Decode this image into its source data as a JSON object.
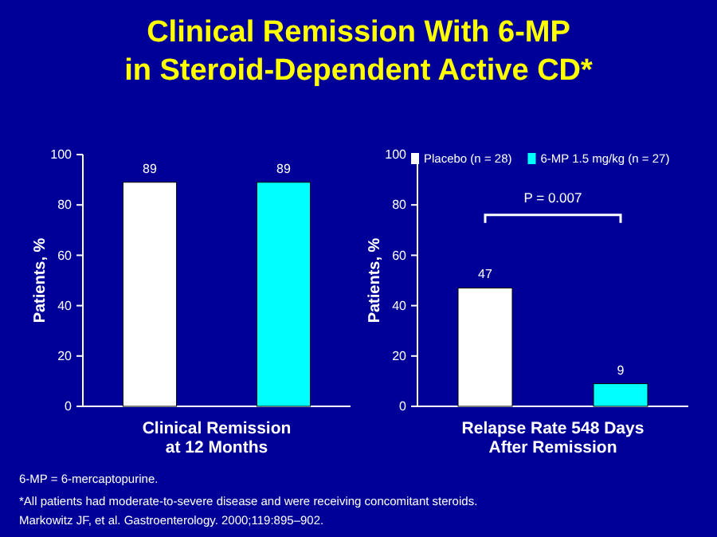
{
  "chart_data": [
    {
      "type": "bar",
      "title": "Clinical Remission With 6-MP\nin Steroid-Dependent Active CD*",
      "categories": [
        null
      ],
      "series": [
        {
          "name": "Placebo (n = 28)",
          "color": "#ffffff",
          "values": [
            89
          ]
        },
        {
          "name": "6-MP 1.5 mg/kg (n = 27)",
          "color": "#00ffff",
          "values": [
            89
          ]
        }
      ],
      "xlabel": "Clinical Remission\nat 12 Months",
      "ylabel": "Patients, %",
      "ylim": [
        0,
        100
      ],
      "yticks": [
        0,
        20,
        40,
        60,
        80,
        100
      ],
      "data_labels": true,
      "legend": "top",
      "annotations": [
        "6-MP = 6-mercaptopurine.",
        "*All patients had moderate-to-severe disease and were receiving concomitant steroids.",
        "Markowitz JF, et al. Gastroenterology. 2000;119:895–902."
      ]
    },
    {
      "type": "bar",
      "categories": [
        null
      ],
      "series": [
        {
          "color": "#ffffff",
          "values": [
            47
          ]
        },
        {
          "color": "#00ffff",
          "values": [
            9
          ]
        }
      ],
      "xlabel": "Relapse Rate 548 Days\nAfter Remission",
      "ylabel": "Patients, %",
      "ylim": [
        0,
        100
      ],
      "yticks": [
        0,
        20,
        40,
        60,
        80,
        100
      ],
      "data_labels": true,
      "annotations": [
        "P = 0.007"
      ]
    }
  ]
}
